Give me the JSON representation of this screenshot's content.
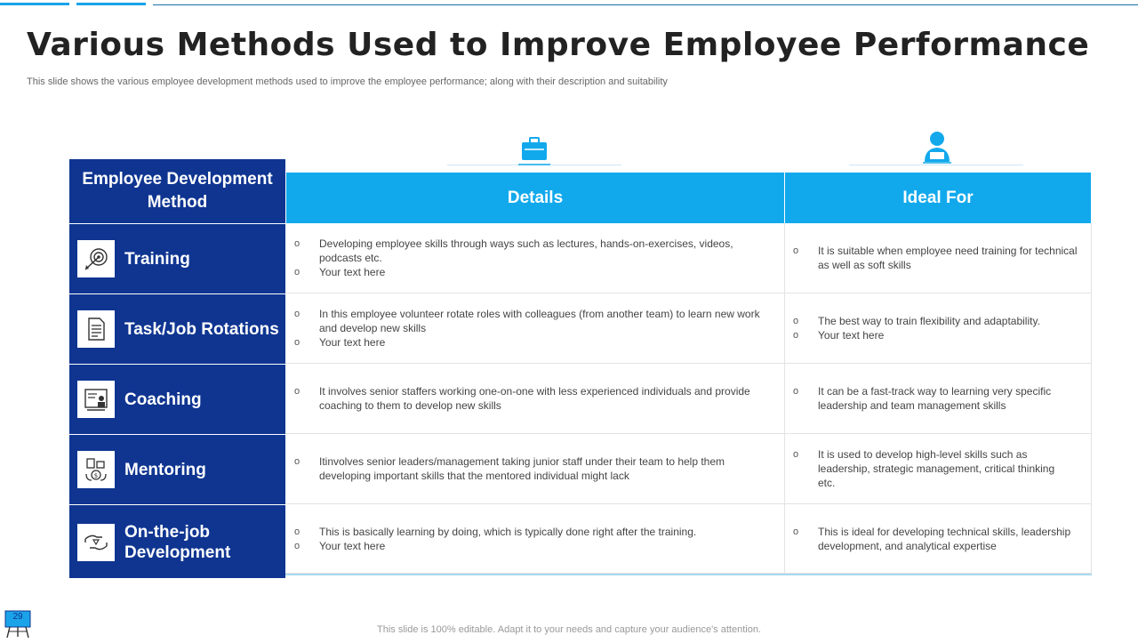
{
  "title": "Various Methods Used to Improve Employee Performance",
  "subtitle": "This slide shows the various employee development methods used to improve the employee performance; along with their description and suitability",
  "table": {
    "header_method": "Employee Development Method",
    "header_details": "Details",
    "header_ideal": "Ideal For",
    "details_icon": "briefcase-icon",
    "ideal_icon": "person-icon",
    "rows": [
      {
        "method": "Training",
        "icon": "target-icon",
        "details": [
          "Developing employee skills through ways such as lectures, hands-on-exercises, videos, podcasts etc.",
          "Your text here"
        ],
        "ideal": [
          "It is suitable when employee need training for technical as well as soft skills"
        ]
      },
      {
        "method": "Task/Job Rotations",
        "icon": "document-icon",
        "details": [
          "In this employee volunteer rotate roles with colleagues (from another team) to learn new work and develop new skills",
          "Your text here"
        ],
        "ideal": [
          "The best way to train flexibility and adaptability.",
          "Your text here"
        ]
      },
      {
        "method": "Coaching",
        "icon": "presentation-icon",
        "details": [
          "It involves senior staffers working one-on-one with less experienced individuals and provide coaching to them to develop new skills"
        ],
        "ideal": [
          "It can be a fast-track way to learning very specific leadership and team management skills"
        ]
      },
      {
        "method": "Mentoring",
        "icon": "mentoring-icon",
        "details": [
          "Itinvolves senior leaders/management taking junior staff under their team to help them developing important skills that the mentored individual might lack"
        ],
        "ideal": [
          "It is used to develop high-level skills such as leadership, strategic management, critical thinking etc."
        ]
      },
      {
        "method": "On-the-job Development",
        "icon": "hands-icon",
        "details": [
          "This is basically learning by doing, which is typically done right after the training.",
          "Your text here"
        ],
        "ideal": [
          "This is ideal for developing technical skills, leadership development, and analytical expertise"
        ]
      }
    ]
  },
  "footer": "This slide is 100% editable. Adapt it to your needs and capture your audience's attention.",
  "slide_number": "29",
  "colors": {
    "navy": "#0f3591",
    "accent": "#12a9ec"
  }
}
